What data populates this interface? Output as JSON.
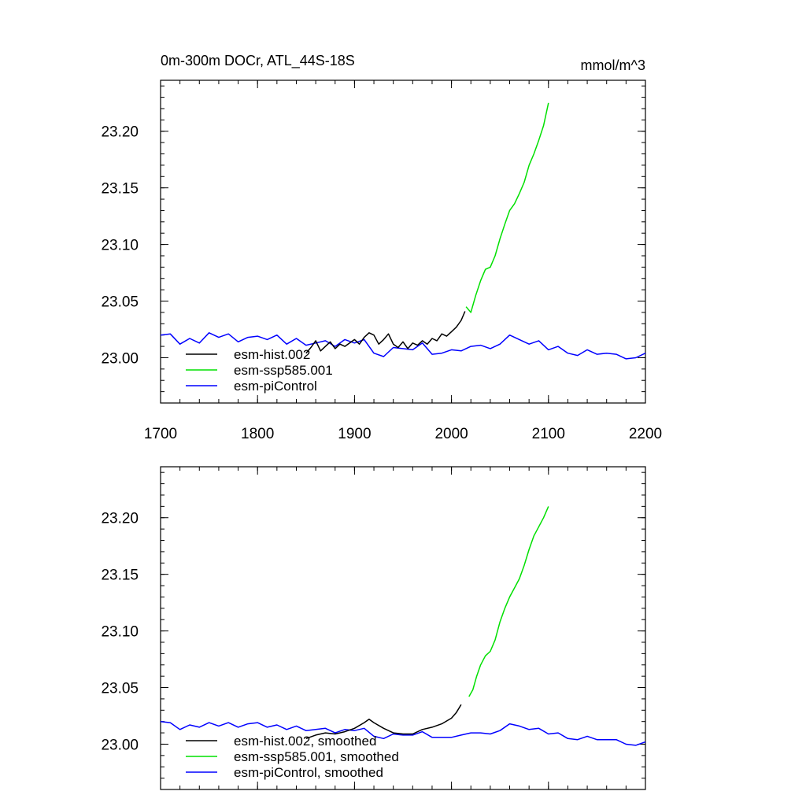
{
  "figure": {
    "title": "0m-300m DOCr, ATL_44S-18S",
    "units": "mmol/m^3"
  },
  "chart_data": [
    {
      "type": "line",
      "panel": "top",
      "title": "0m-300m DOCr, ATL_44S-18S",
      "units": "mmol/m^3",
      "xlim": [
        1700,
        2200
      ],
      "ylim": [
        22.96,
        23.245
      ],
      "x_ticks": [
        1700,
        1800,
        1900,
        2000,
        2100,
        2200
      ],
      "x_tick_labels": [
        "1700",
        "1800",
        "1900",
        "2000",
        "2100",
        "2200"
      ],
      "y_ticks": [
        23.0,
        23.05,
        23.1,
        23.15,
        23.2
      ],
      "y_tick_labels": [
        "23.00",
        "23.05",
        "23.10",
        "23.15",
        "23.20"
      ],
      "legend_position": "bottom-left",
      "series": [
        {
          "name": "esm-hist.002",
          "color": "#000000",
          "x": [
            1850,
            1855,
            1860,
            1865,
            1870,
            1875,
            1880,
            1885,
            1890,
            1895,
            1900,
            1905,
            1910,
            1915,
            1920,
            1925,
            1930,
            1935,
            1940,
            1945,
            1950,
            1955,
            1960,
            1965,
            1970,
            1975,
            1980,
            1985,
            1990,
            1995,
            2000,
            2005,
            2010,
            2014
          ],
          "y": [
            23.004,
            23.009,
            23.015,
            23.006,
            23.01,
            23.014,
            23.008,
            23.012,
            23.01,
            23.013,
            23.016,
            23.012,
            23.018,
            23.022,
            23.02,
            23.012,
            23.016,
            23.021,
            23.012,
            23.009,
            23.014,
            23.008,
            23.013,
            23.011,
            23.015,
            23.012,
            23.017,
            23.015,
            23.021,
            23.019,
            23.023,
            23.027,
            23.033,
            23.041
          ]
        },
        {
          "name": "esm-ssp585.001",
          "color": "#00e000",
          "x": [
            2015,
            2020,
            2025,
            2030,
            2035,
            2040,
            2045,
            2050,
            2055,
            2060,
            2065,
            2070,
            2075,
            2080,
            2085,
            2090,
            2095,
            2100
          ],
          "y": [
            23.045,
            23.04,
            23.055,
            23.068,
            23.078,
            23.08,
            23.09,
            23.105,
            23.118,
            23.13,
            23.136,
            23.145,
            23.155,
            23.17,
            23.18,
            23.192,
            23.205,
            23.225
          ]
        },
        {
          "name": "esm-piControl",
          "color": "#0000ff",
          "x": [
            1700,
            1710,
            1720,
            1730,
            1740,
            1750,
            1760,
            1770,
            1780,
            1790,
            1800,
            1810,
            1820,
            1830,
            1840,
            1850,
            1860,
            1870,
            1880,
            1890,
            1900,
            1910,
            1920,
            1930,
            1940,
            1950,
            1960,
            1970,
            1980,
            1990,
            2000,
            2010,
            2020,
            2030,
            2040,
            2050,
            2060,
            2070,
            2080,
            2090,
            2100,
            2110,
            2120,
            2130,
            2140,
            2150,
            2160,
            2170,
            2180,
            2190,
            2200
          ],
          "y": [
            23.02,
            23.021,
            23.012,
            23.017,
            23.013,
            23.022,
            23.018,
            23.021,
            23.014,
            23.018,
            23.019,
            23.016,
            23.02,
            23.012,
            23.017,
            23.011,
            23.013,
            23.015,
            23.01,
            23.016,
            23.013,
            23.016,
            23.004,
            23.001,
            23.009,
            23.008,
            23.007,
            23.013,
            23.003,
            23.004,
            23.007,
            23.006,
            23.01,
            23.011,
            23.008,
            23.012,
            23.02,
            23.016,
            23.012,
            23.015,
            23.007,
            23.01,
            23.004,
            23.002,
            23.007,
            23.003,
            23.004,
            23.003,
            22.999,
            23.0,
            23.004
          ]
        }
      ]
    },
    {
      "type": "line",
      "panel": "bottom",
      "xlim": [
        1700,
        2200
      ],
      "ylim": [
        22.96,
        23.245
      ],
      "x_ticks": [
        1700,
        1800,
        1900,
        2000,
        2100,
        2200
      ],
      "y_ticks": [
        23.0,
        23.05,
        23.1,
        23.15,
        23.2
      ],
      "y_tick_labels": [
        "23.00",
        "23.05",
        "23.10",
        "23.15",
        "23.20"
      ],
      "legend_position": "bottom-left",
      "series": [
        {
          "name": "esm-hist.002, smoothed",
          "color": "#000000",
          "x": [
            1850,
            1860,
            1870,
            1880,
            1890,
            1900,
            1910,
            1915,
            1920,
            1930,
            1940,
            1950,
            1960,
            1970,
            1980,
            1990,
            2000,
            2005,
            2010
          ],
          "y": [
            23.005,
            23.008,
            23.01,
            23.009,
            23.011,
            23.014,
            23.019,
            23.022,
            23.019,
            23.014,
            23.01,
            23.009,
            23.009,
            23.013,
            23.015,
            23.018,
            23.023,
            23.028,
            23.035
          ]
        },
        {
          "name": "esm-ssp585.001, smoothed",
          "color": "#00e000",
          "x": [
            2018,
            2022,
            2026,
            2030,
            2035,
            2040,
            2045,
            2050,
            2055,
            2060,
            2065,
            2070,
            2075,
            2080,
            2085,
            2090,
            2095,
            2100
          ],
          "y": [
            23.042,
            23.048,
            23.06,
            23.07,
            23.078,
            23.082,
            23.092,
            23.108,
            23.12,
            23.13,
            23.138,
            23.146,
            23.158,
            23.172,
            23.184,
            23.192,
            23.2,
            23.21
          ]
        },
        {
          "name": "esm-piControl, smoothed",
          "color": "#0000ff",
          "x": [
            1700,
            1710,
            1720,
            1730,
            1740,
            1750,
            1760,
            1770,
            1780,
            1790,
            1800,
            1810,
            1820,
            1830,
            1840,
            1850,
            1860,
            1870,
            1880,
            1890,
            1900,
            1910,
            1920,
            1930,
            1940,
            1950,
            1960,
            1970,
            1980,
            1990,
            2000,
            2010,
            2020,
            2030,
            2040,
            2050,
            2060,
            2070,
            2080,
            2090,
            2100,
            2110,
            2120,
            2130,
            2140,
            2150,
            2160,
            2170,
            2180,
            2190,
            2200
          ],
          "y": [
            23.02,
            23.019,
            23.013,
            23.017,
            23.015,
            23.019,
            23.016,
            23.019,
            23.015,
            23.018,
            23.019,
            23.015,
            23.017,
            23.013,
            23.016,
            23.012,
            23.013,
            23.014,
            23.01,
            23.013,
            23.012,
            23.014,
            23.007,
            23.005,
            23.009,
            23.008,
            23.008,
            23.011,
            23.006,
            23.006,
            23.006,
            23.008,
            23.01,
            23.01,
            23.009,
            23.012,
            23.018,
            23.016,
            23.013,
            23.014,
            23.009,
            23.01,
            23.005,
            23.004,
            23.007,
            23.004,
            23.004,
            23.004,
            23.0,
            22.999,
            23.002
          ]
        }
      ]
    }
  ]
}
